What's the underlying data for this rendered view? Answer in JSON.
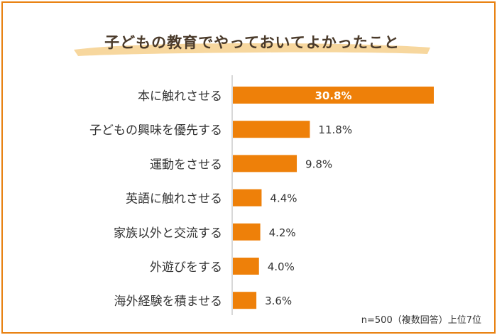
{
  "title": "子どもの教育でやっておいてよかったこと",
  "footnote": "n=500（複数回答）上位7位",
  "colors": {
    "accent": "#ee8009",
    "border": "#e8800f",
    "brush": "#f7d79e",
    "label_text": "#333333",
    "title_text": "#4a3a2a",
    "axis": "#cccccc"
  },
  "chart_data": {
    "type": "bar",
    "orientation": "horizontal",
    "categories": [
      "本に触れさせる",
      "子どもの興味を優先する",
      "運動をさせる",
      "英語に触れさせる",
      "家族以外と交流する",
      "外遊びをする",
      "海外経験を積ませる"
    ],
    "values": [
      30.8,
      11.8,
      9.8,
      4.4,
      4.2,
      4.0,
      3.6
    ],
    "value_labels": [
      "30.8%",
      "11.8%",
      "9.8%",
      "4.4%",
      "4.2%",
      "4.0%",
      "3.6%"
    ],
    "unit": "%",
    "xlim": [
      0,
      30.8
    ],
    "grid": false,
    "legend": "none"
  }
}
